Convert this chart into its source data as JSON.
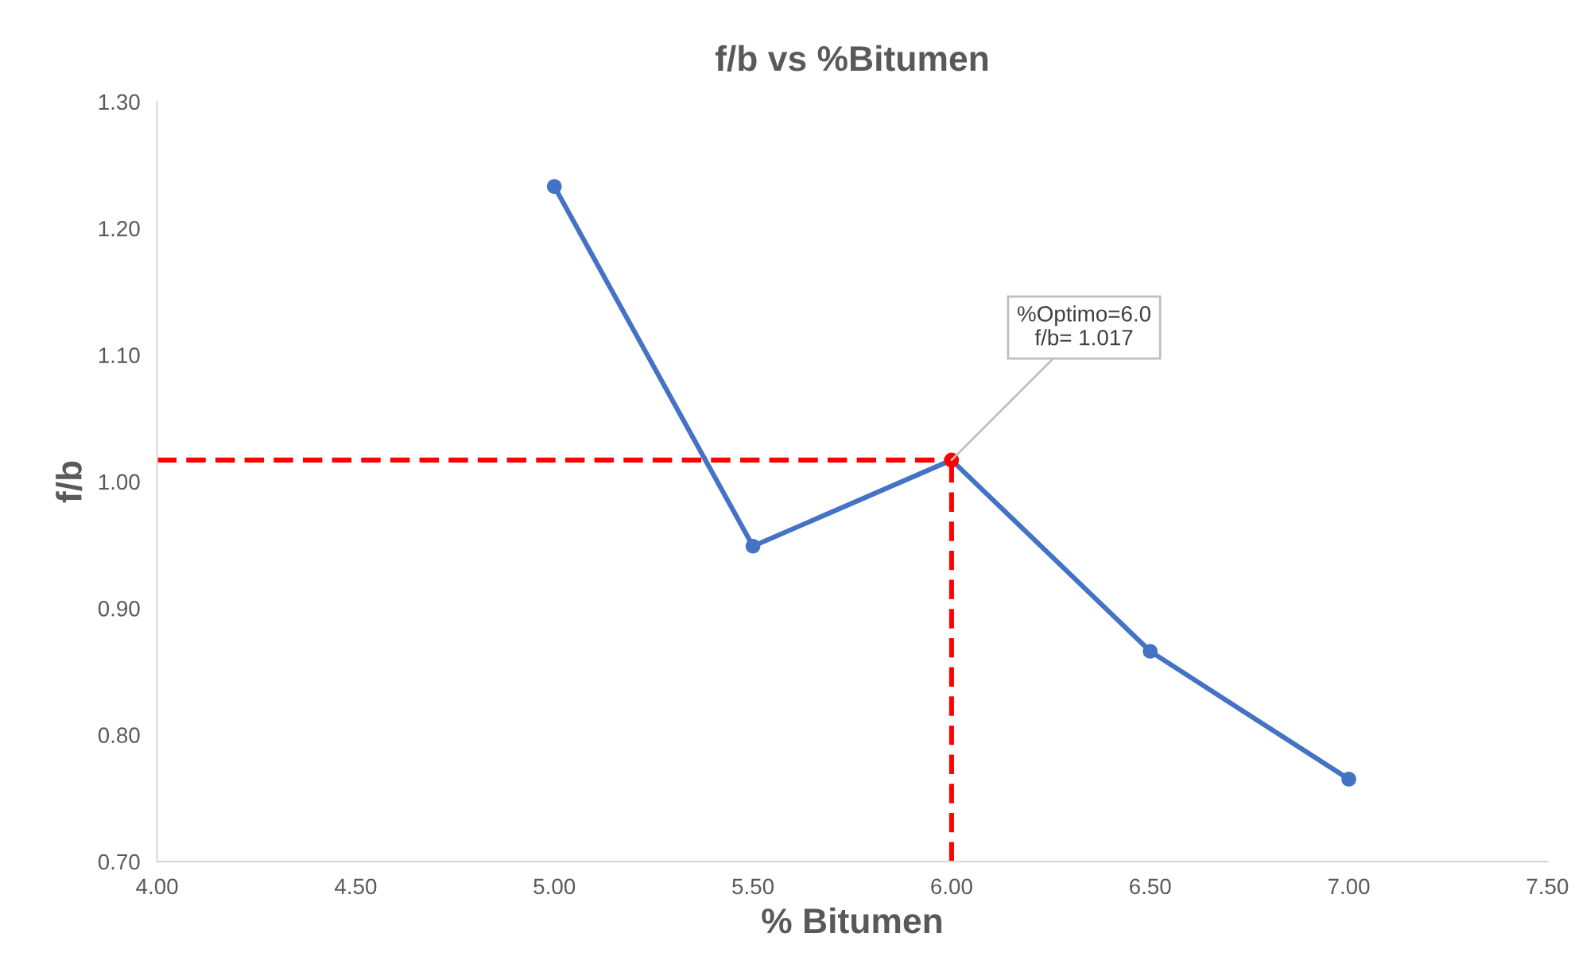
{
  "chart_data": {
    "type": "line",
    "title": "f/b vs %Bitumen",
    "xlabel": "% Bitumen",
    "ylabel": "f/b",
    "x": [
      5.0,
      5.5,
      6.0,
      6.5,
      7.0
    ],
    "series": [
      {
        "color": "#4472c4",
        "colors": [
          "#4472c4",
          "#4472c4",
          "#ff0000",
          "#4472c4",
          "#4472c4"
        ],
        "values": [
          1.233,
          0.949,
          1.017,
          0.866,
          0.765
        ]
      }
    ],
    "marker": "circle",
    "line_style": "solid",
    "grid": false,
    "legend": false,
    "xlim": [
      4.0,
      7.5
    ],
    "ylim": [
      0.7,
      1.3
    ],
    "xticks": [
      {
        "value": 4.0,
        "label": "4.00"
      },
      {
        "value": 4.5,
        "label": "4.50"
      },
      {
        "value": 5.0,
        "label": "5.00"
      },
      {
        "value": 5.5,
        "label": "5.50"
      },
      {
        "value": 6.0,
        "label": "6.00"
      },
      {
        "value": 6.5,
        "label": "6.50"
      },
      {
        "value": 7.0,
        "label": "7.00"
      },
      {
        "value": 7.5,
        "label": "7.50"
      }
    ],
    "yticks": [
      {
        "value": 0.7,
        "label": "0.70"
      },
      {
        "value": 0.8,
        "label": "0.80"
      },
      {
        "value": 0.9,
        "label": "0.90"
      },
      {
        "value": 1.0,
        "label": "1.00"
      },
      {
        "value": 1.1,
        "label": "1.10"
      },
      {
        "value": 1.2,
        "label": "1.20"
      },
      {
        "value": 1.3,
        "label": "1.30"
      }
    ],
    "ref_lines": [
      {
        "axis": "y",
        "value": 1.017,
        "color": "#ff0000",
        "line_style": "dashed"
      },
      {
        "axis": "x",
        "value": 6.0,
        "color": "#ff0000",
        "line_style": "dashed"
      }
    ],
    "annotations": [
      {
        "text": "%Optimo=6.0\nf/b= 1.017",
        "x": 6.0,
        "y": 1.017
      }
    ]
  }
}
